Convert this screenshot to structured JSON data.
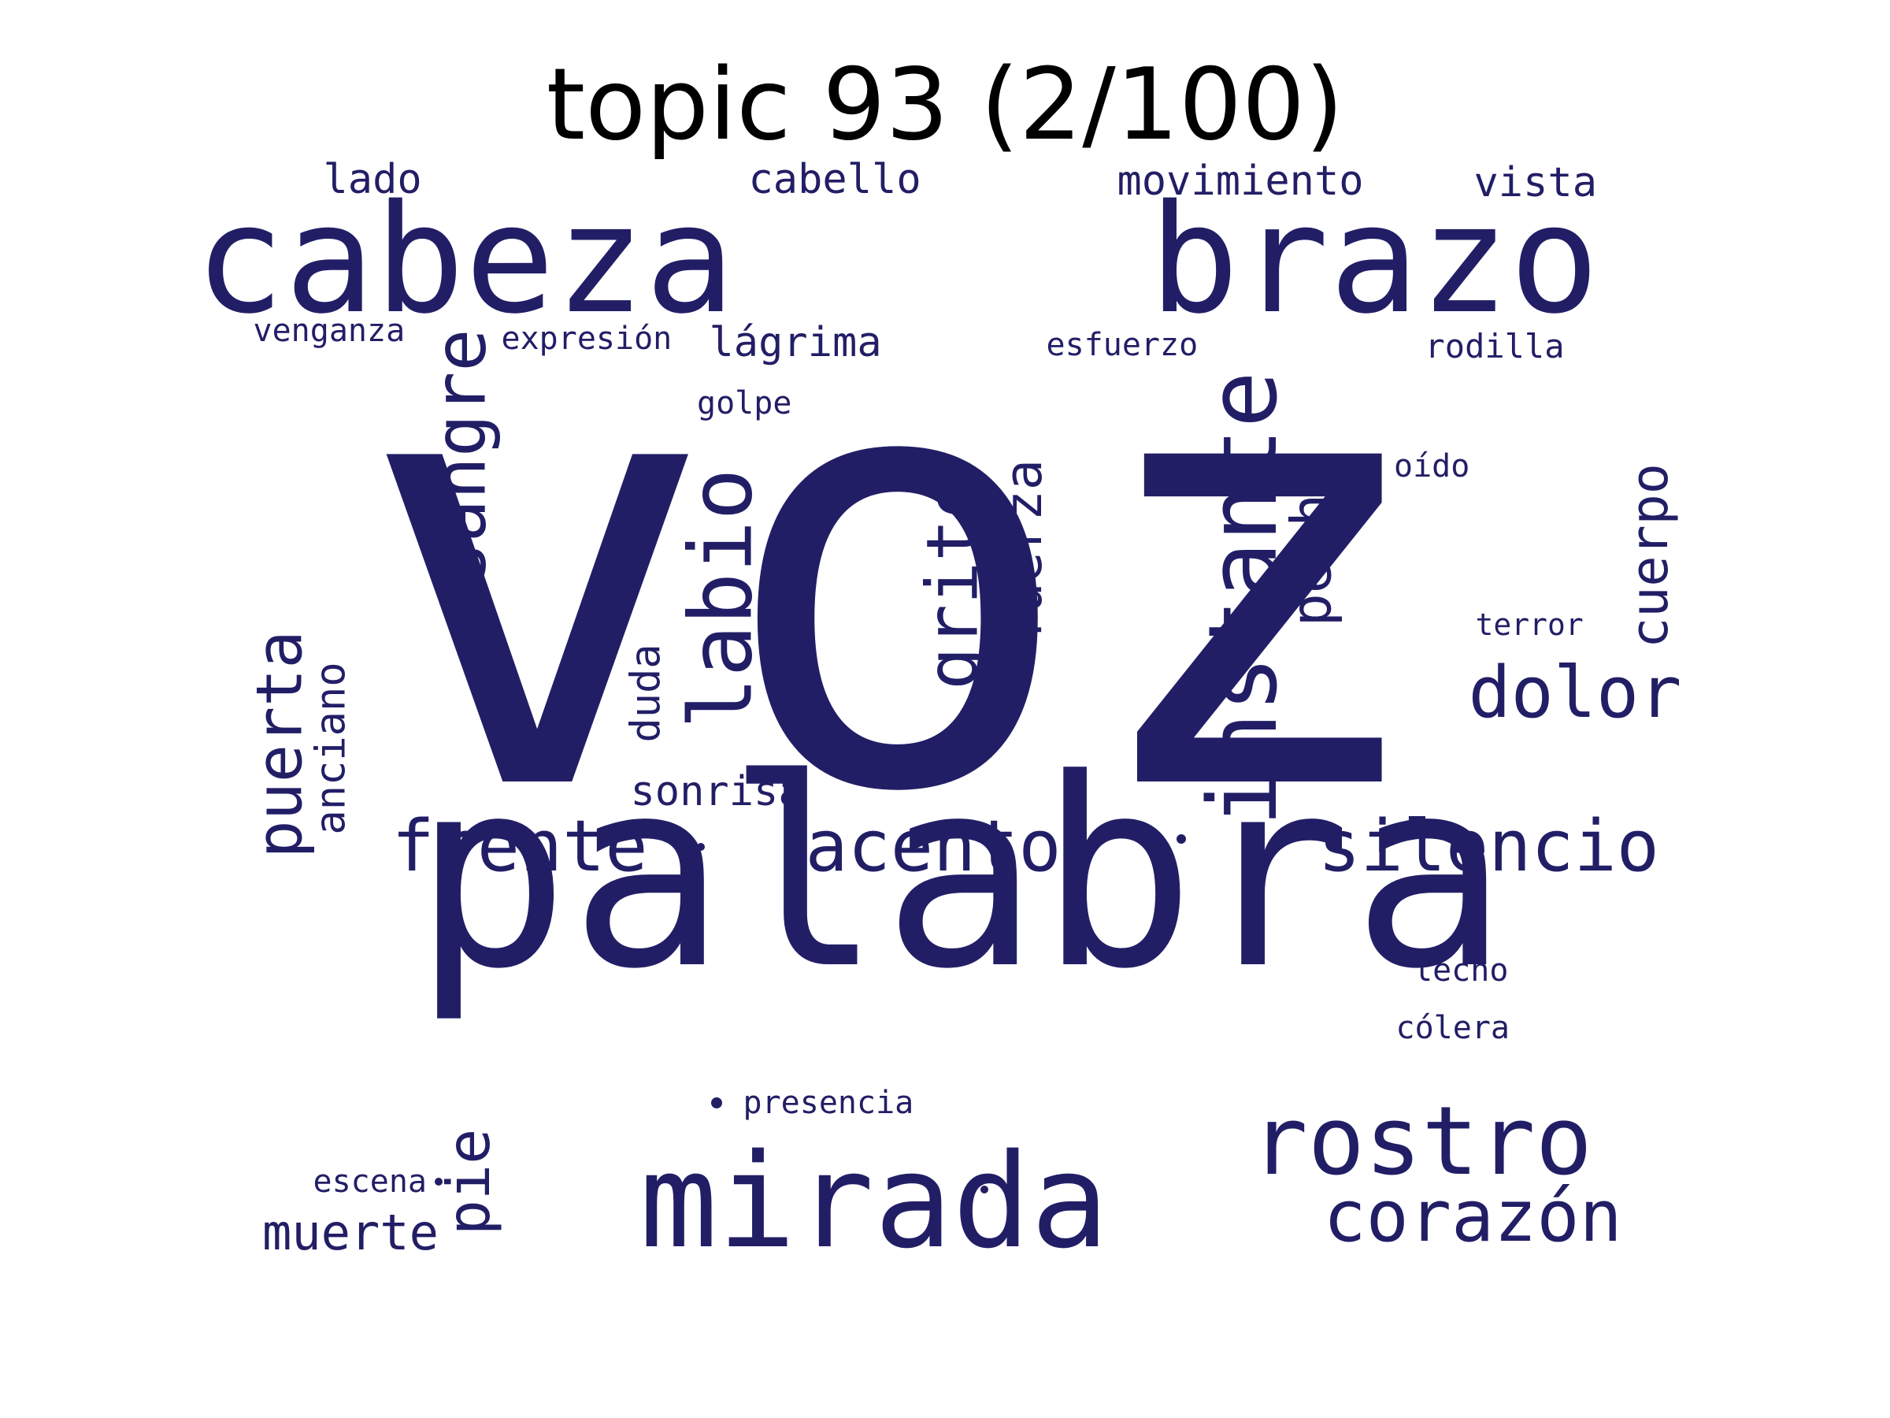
{
  "title": "topic 93 (2/100)",
  "word_color": "#221e66",
  "words": [
    {
      "text": "voz",
      "weight": 100
    },
    {
      "text": "palabra",
      "weight": 42
    },
    {
      "text": "cabeza",
      "weight": 30
    },
    {
      "text": "brazo",
      "weight": 30
    },
    {
      "text": "mirada",
      "weight": 24
    },
    {
      "text": "rostro",
      "weight": 16
    },
    {
      "text": "instante",
      "weight": 15
    },
    {
      "text": "labio",
      "weight": 13
    },
    {
      "text": "sangre",
      "weight": 11
    },
    {
      "text": "grito",
      "weight": 10
    },
    {
      "text": "silencio",
      "weight": 9
    },
    {
      "text": "acento",
      "weight": 9
    },
    {
      "text": "frente",
      "weight": 9
    },
    {
      "text": "dolor",
      "weight": 9
    },
    {
      "text": "corazón",
      "weight": 9
    },
    {
      "text": "puerta",
      "weight": 8
    },
    {
      "text": "pecho",
      "weight": 8
    },
    {
      "text": "fuerza",
      "weight": 7
    },
    {
      "text": "cuerpo",
      "weight": 7
    },
    {
      "text": "pie",
      "weight": 7
    },
    {
      "text": "muerte",
      "weight": 6
    },
    {
      "text": "anciano",
      "weight": 5
    },
    {
      "text": "duda",
      "weight": 5
    },
    {
      "text": "lágrima",
      "weight": 5
    },
    {
      "text": "movimiento",
      "weight": 5
    },
    {
      "text": "sonrisa",
      "weight": 5
    },
    {
      "text": "cabello",
      "weight": 5
    },
    {
      "text": "vista",
      "weight": 5
    },
    {
      "text": "lado",
      "weight": 5
    },
    {
      "text": "rodilla",
      "weight": 4
    },
    {
      "text": "lecho",
      "weight": 4
    },
    {
      "text": "cólera",
      "weight": 4
    },
    {
      "text": "presencia",
      "weight": 4
    },
    {
      "text": "expresión",
      "weight": 4
    },
    {
      "text": "venganza",
      "weight": 4
    },
    {
      "text": "escena",
      "weight": 4
    },
    {
      "text": "oído",
      "weight": 4
    },
    {
      "text": "golpe",
      "weight": 4
    },
    {
      "text": "esfuerzo",
      "weight": 4
    },
    {
      "text": "terror",
      "weight": 4
    },
    {
      "text": "",
      "weight": 2
    },
    {
      "text": "",
      "weight": 2
    },
    {
      "text": "",
      "weight": 2
    },
    {
      "text": "",
      "weight": 2
    },
    {
      "text": "",
      "weight": 2
    }
  ]
}
